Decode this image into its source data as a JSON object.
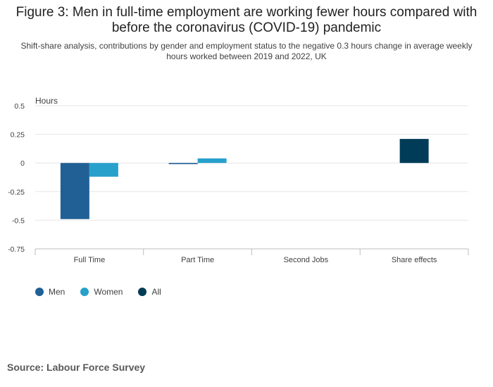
{
  "title": "Figure 3: Men in full-time employment are working fewer hours compared with before the coronavirus (COVID-19) pandemic",
  "subtitle": "Shift-share analysis, contributions by gender and employment status to the negative 0.3 hours change in average weekly hours worked between 2019 and 2022, UK",
  "source": "Source: Labour Force Survey",
  "chart_data": {
    "type": "bar",
    "ylabel": "Hours",
    "ylim": [
      -0.75,
      0.5
    ],
    "yticks": [
      0.5,
      0.25,
      0,
      -0.25,
      -0.5,
      -0.75
    ],
    "ytick_labels": [
      "0.5",
      "0.25",
      "0",
      "-0.25",
      "-0.5",
      "-0.75"
    ],
    "grid": true,
    "legend_position": "bottom-left",
    "categories": [
      "Full Time",
      "Part Time",
      "Second Jobs",
      "Share effects"
    ],
    "series": [
      {
        "name": "Men",
        "color": "#206095",
        "values": [
          -0.49,
          -0.01,
          null,
          null
        ]
      },
      {
        "name": "Women",
        "color": "#27a0cc",
        "values": [
          -0.12,
          0.04,
          null,
          null
        ]
      },
      {
        "name": "All",
        "color": "#003c57",
        "values": [
          null,
          null,
          null,
          0.21
        ]
      }
    ]
  }
}
